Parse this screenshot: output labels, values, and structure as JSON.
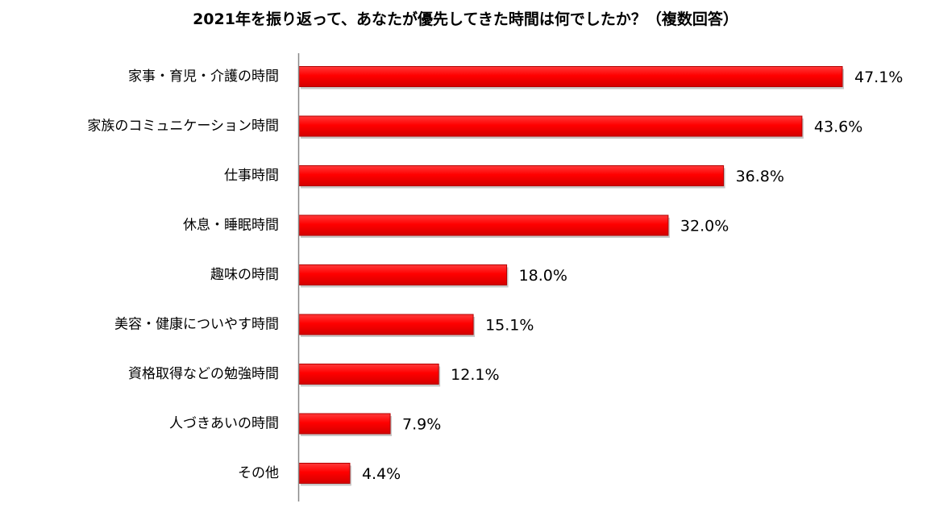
{
  "chart_data": {
    "type": "bar",
    "orientation": "horizontal",
    "title": "2021年を振り返って、あなたが優先してきた時間は何でしたか？（複数回答）",
    "categories": [
      "家事・育児・介護の時間",
      "家族のコミュニケーション時間",
      "仕事時間",
      "休息・睡眠時間",
      "趣味の時間",
      "美容・健康についやす時間",
      "資格取得などの勉強時間",
      "人づきあいの時間",
      "その他"
    ],
    "values": [
      47.1,
      43.6,
      36.8,
      32.0,
      18.0,
      15.1,
      12.1,
      7.9,
      4.4
    ],
    "value_labels": [
      "47.1%",
      "43.6%",
      "36.8%",
      "32.0%",
      "18.0%",
      "15.1%",
      "12.1%",
      "7.9%",
      "4.4%"
    ],
    "unit": "%",
    "xlim": [
      0,
      50
    ],
    "grid": false,
    "legend": "none",
    "colors": {
      "bar": "#ff0000",
      "bar_dark": "#b30000",
      "axis": "#888888"
    }
  }
}
